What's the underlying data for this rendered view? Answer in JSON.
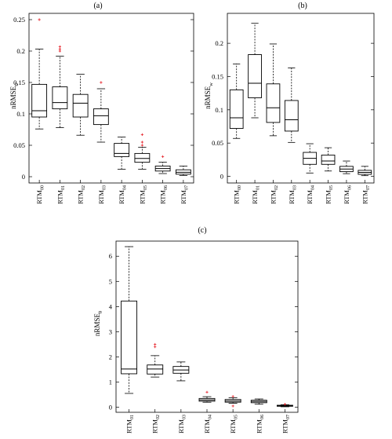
{
  "chart_data": [
    {
      "type": "box",
      "title": "(a)",
      "ylabel": "nRMSE",
      "ylabel_sub": "U",
      "ylim": [
        -0.01,
        0.26
      ],
      "yticks": [
        0,
        0.05,
        0.1,
        0.15,
        0.2,
        0.25
      ],
      "ytick_labels": [
        "0",
        "0.05",
        "0.1",
        "0.15",
        "0.2",
        "0.25"
      ],
      "categories": [
        "00",
        "01",
        "02",
        "03",
        "04",
        "05",
        "06",
        "07"
      ],
      "category_prefix": "RTM",
      "boxes": [
        {
          "min": 0.076,
          "q1": 0.095,
          "median": 0.105,
          "q3": 0.147,
          "max": 0.203,
          "outliers": [
            0.25
          ]
        },
        {
          "min": 0.078,
          "q1": 0.108,
          "median": 0.118,
          "q3": 0.143,
          "max": 0.192,
          "outliers": [
            0.2,
            0.203,
            0.207
          ]
        },
        {
          "min": 0.066,
          "q1": 0.095,
          "median": 0.117,
          "q3": 0.131,
          "max": 0.163,
          "outliers": []
        },
        {
          "min": 0.055,
          "q1": 0.083,
          "median": 0.097,
          "q3": 0.108,
          "max": 0.14,
          "outliers": [
            0.15
          ]
        },
        {
          "min": 0.012,
          "q1": 0.032,
          "median": 0.037,
          "q3": 0.053,
          "max": 0.063,
          "outliers": []
        },
        {
          "min": 0.012,
          "q1": 0.023,
          "median": 0.029,
          "q3": 0.037,
          "max": 0.047,
          "outliers": [
            0.05,
            0.055,
            0.067
          ]
        },
        {
          "min": 0.005,
          "q1": 0.009,
          "median": 0.013,
          "q3": 0.017,
          "max": 0.023,
          "outliers": [
            0.032
          ]
        },
        {
          "min": 0.002,
          "q1": 0.004,
          "median": 0.007,
          "q3": 0.011,
          "max": 0.017,
          "outliers": []
        }
      ]
    },
    {
      "type": "box",
      "title": "(b)",
      "ylabel": "nRMSE",
      "ylabel_sub": "w",
      "ylim": [
        -0.01,
        0.245
      ],
      "yticks": [
        0,
        0.05,
        0.1,
        0.15,
        0.2
      ],
      "ytick_labels": [
        "0",
        "0.05",
        "0.1",
        "0.15",
        "0.2"
      ],
      "categories": [
        "00",
        "01",
        "02",
        "03",
        "04",
        "05",
        "06",
        "07"
      ],
      "category_prefix": "RTM",
      "boxes": [
        {
          "min": 0.057,
          "q1": 0.072,
          "median": 0.088,
          "q3": 0.13,
          "max": 0.169,
          "outliers": []
        },
        {
          "min": 0.088,
          "q1": 0.118,
          "median": 0.14,
          "q3": 0.183,
          "max": 0.23,
          "outliers": []
        },
        {
          "min": 0.061,
          "q1": 0.081,
          "median": 0.103,
          "q3": 0.139,
          "max": 0.199,
          "outliers": []
        },
        {
          "min": 0.051,
          "q1": 0.068,
          "median": 0.085,
          "q3": 0.114,
          "max": 0.163,
          "outliers": []
        },
        {
          "min": 0.005,
          "q1": 0.018,
          "median": 0.027,
          "q3": 0.036,
          "max": 0.049,
          "outliers": []
        },
        {
          "min": 0.008,
          "q1": 0.018,
          "median": 0.023,
          "q3": 0.032,
          "max": 0.043,
          "outliers": []
        },
        {
          "min": 0.004,
          "q1": 0.007,
          "median": 0.011,
          "q3": 0.015,
          "max": 0.023,
          "outliers": []
        },
        {
          "min": 0.001,
          "q1": 0.003,
          "median": 0.006,
          "q3": 0.009,
          "max": 0.015,
          "outliers": []
        }
      ]
    },
    {
      "type": "box",
      "title": "(c)",
      "ylabel": "nRMSE",
      "ylabel_sub": "θ",
      "ylim": [
        -0.2,
        6.6
      ],
      "yticks": [
        0,
        1,
        2,
        3,
        4,
        5,
        6
      ],
      "ytick_labels": [
        "0",
        "1",
        "2",
        "3",
        "4",
        "5",
        "6"
      ],
      "categories": [
        "01",
        "02",
        "03",
        "04",
        "05",
        "06",
        "07"
      ],
      "category_prefix": "RTM",
      "boxes": [
        {
          "min": 0.55,
          "q1": 1.33,
          "median": 1.52,
          "q3": 4.22,
          "max": 6.38,
          "outliers": []
        },
        {
          "min": 1.2,
          "q1": 1.32,
          "median": 1.52,
          "q3": 1.68,
          "max": 2.05,
          "outliers": [
            2.4,
            2.5
          ]
        },
        {
          "min": 1.05,
          "q1": 1.35,
          "median": 1.48,
          "q3": 1.62,
          "max": 1.8,
          "outliers": []
        },
        {
          "min": 0.2,
          "q1": 0.24,
          "median": 0.29,
          "q3": 0.35,
          "max": 0.42,
          "outliers": [
            0.6
          ]
        },
        {
          "min": 0.16,
          "q1": 0.2,
          "median": 0.25,
          "q3": 0.31,
          "max": 0.38,
          "outliers": [
            0.05,
            0.43
          ]
        },
        {
          "min": 0.12,
          "q1": 0.18,
          "median": 0.23,
          "q3": 0.28,
          "max": 0.33,
          "outliers": []
        },
        {
          "min": 0.02,
          "q1": 0.04,
          "median": 0.06,
          "q3": 0.08,
          "max": 0.1,
          "outliers": [
            0.12
          ]
        }
      ]
    }
  ],
  "colors": {
    "box": "#000000",
    "median": "#000000",
    "outlier": "#e8333a",
    "axis": "#000000"
  }
}
